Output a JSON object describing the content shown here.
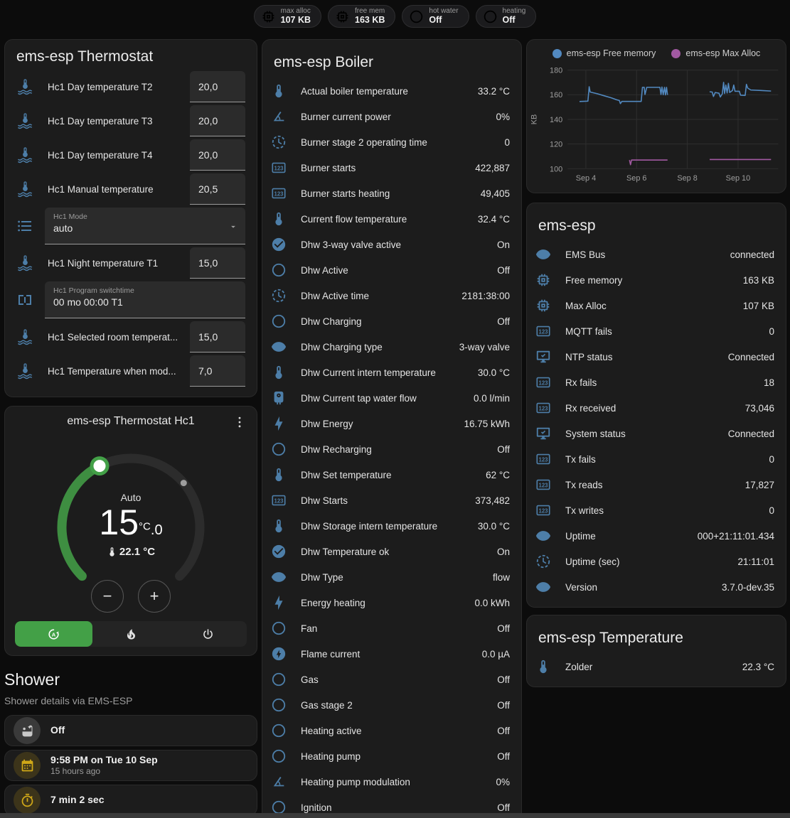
{
  "badges": [
    {
      "icon": "memory",
      "label": "max alloc",
      "value": "107 KB"
    },
    {
      "icon": "memory",
      "label": "free mem",
      "value": "163 KB"
    },
    {
      "icon": "circle-o",
      "label": "hot water",
      "value": "Off"
    },
    {
      "icon": "circle-o",
      "label": "heating",
      "value": "Off"
    }
  ],
  "thermostat_card": {
    "title": "ems-esp Thermostat",
    "rows": [
      {
        "type": "number",
        "icon": "thermo-water",
        "label": "Hc1 Day temperature T2",
        "value": "20,0"
      },
      {
        "type": "number",
        "icon": "thermo-water",
        "label": "Hc1 Day temperature T3",
        "value": "20,0"
      },
      {
        "type": "number",
        "icon": "thermo-water",
        "label": "Hc1 Day temperature T4",
        "value": "20,0"
      },
      {
        "type": "number",
        "icon": "thermo-water",
        "label": "Hc1 Manual temperature",
        "value": "20,5"
      },
      {
        "type": "select",
        "icon": "list",
        "label": "Hc1 Mode",
        "value": "auto"
      },
      {
        "type": "number",
        "icon": "thermo-water",
        "label": "Hc1 Night temperature T1",
        "value": "15,0"
      },
      {
        "type": "text",
        "icon": "valve",
        "label": "Hc1 Program switchtime",
        "value": "00 mo 00:00 T1"
      },
      {
        "type": "number",
        "icon": "thermo-water",
        "label": "Hc1 Selected room temperat...",
        "value": "15,0"
      },
      {
        "type": "number",
        "icon": "thermo-water",
        "label": "Hc1 Temperature when mod...",
        "value": "7,0"
      }
    ]
  },
  "hc1_card": {
    "title": "ems-esp Thermostat Hc1",
    "mode_text": "Auto",
    "temp_int": "15",
    "temp_frac": ".0",
    "temp_unit": "°C",
    "current_temp": "22.1 °C"
  },
  "shower": {
    "title": "Shower",
    "subtitle": "Shower details via EMS-ESP",
    "state": "Off",
    "last_time": "9:58 PM on Tue 10 Sep",
    "last_ago": "15 hours ago",
    "duration": "7 min 2 sec"
  },
  "boiler_card": {
    "title": "ems-esp Boiler",
    "entities": [
      {
        "icon": "thermometer",
        "name": "Actual boiler temperature",
        "value": "33.2 °C"
      },
      {
        "icon": "angle",
        "name": "Burner current power",
        "value": "0%"
      },
      {
        "icon": "clock",
        "name": "Burner stage 2 operating time",
        "value": "0"
      },
      {
        "icon": "counter",
        "name": "Burner starts",
        "value": "422,887"
      },
      {
        "icon": "counter",
        "name": "Burner starts heating",
        "value": "49,405"
      },
      {
        "icon": "thermometer",
        "name": "Current flow temperature",
        "value": "32.4 °C"
      },
      {
        "icon": "check-circle",
        "name": "Dhw 3-way valve active",
        "value": "On"
      },
      {
        "icon": "circle-o",
        "name": "Dhw Active",
        "value": "Off"
      },
      {
        "icon": "clock",
        "name": "Dhw Active time",
        "value": "2181:38:00"
      },
      {
        "icon": "circle-o",
        "name": "Dhw Charging",
        "value": "Off"
      },
      {
        "icon": "eye",
        "name": "Dhw Charging type",
        "value": "3-way valve"
      },
      {
        "icon": "thermometer",
        "name": "Dhw Current intern temperature",
        "value": "30.0 °C"
      },
      {
        "icon": "boiler",
        "name": "Dhw Current tap water flow",
        "value": "0.0 l/min"
      },
      {
        "icon": "bolt",
        "name": "Dhw Energy",
        "value": "16.75 kWh"
      },
      {
        "icon": "circle-o",
        "name": "Dhw Recharging",
        "value": "Off"
      },
      {
        "icon": "thermometer",
        "name": "Dhw Set temperature",
        "value": "62 °C"
      },
      {
        "icon": "counter",
        "name": "Dhw Starts",
        "value": "373,482"
      },
      {
        "icon": "thermometer",
        "name": "Dhw Storage intern temperature",
        "value": "30.0 °C"
      },
      {
        "icon": "check-circle",
        "name": "Dhw Temperature ok",
        "value": "On"
      },
      {
        "icon": "eye",
        "name": "Dhw Type",
        "value": "flow"
      },
      {
        "icon": "bolt",
        "name": "Energy heating",
        "value": "0.0 kWh"
      },
      {
        "icon": "circle-o",
        "name": "Fan",
        "value": "Off"
      },
      {
        "icon": "bolt-circle",
        "name": "Flame current",
        "value": "0.0 µA"
      },
      {
        "icon": "circle-o",
        "name": "Gas",
        "value": "Off"
      },
      {
        "icon": "circle-o",
        "name": "Gas stage 2",
        "value": "Off"
      },
      {
        "icon": "circle-o",
        "name": "Heating active",
        "value": "Off"
      },
      {
        "icon": "circle-o",
        "name": "Heating pump",
        "value": "Off"
      },
      {
        "icon": "angle",
        "name": "Heating pump modulation",
        "value": "0%"
      },
      {
        "icon": "circle-o",
        "name": "Ignition",
        "value": "Off"
      }
    ]
  },
  "emsesp_card": {
    "title": "ems-esp",
    "entities": [
      {
        "icon": "eye",
        "name": "EMS Bus",
        "value": "connected"
      },
      {
        "icon": "memory",
        "name": "Free memory",
        "value": "163 KB"
      },
      {
        "icon": "memory",
        "name": "Max Alloc",
        "value": "107 KB"
      },
      {
        "icon": "counter",
        "name": "MQTT fails",
        "value": "0"
      },
      {
        "icon": "monitor-check",
        "name": "NTP status",
        "value": "Connected"
      },
      {
        "icon": "counter",
        "name": "Rx fails",
        "value": "18"
      },
      {
        "icon": "counter",
        "name": "Rx received",
        "value": "73,046"
      },
      {
        "icon": "monitor-check",
        "name": "System status",
        "value": "Connected"
      },
      {
        "icon": "counter",
        "name": "Tx fails",
        "value": "0"
      },
      {
        "icon": "counter",
        "name": "Tx reads",
        "value": "17,827"
      },
      {
        "icon": "counter",
        "name": "Tx writes",
        "value": "0"
      },
      {
        "icon": "eye",
        "name": "Uptime",
        "value": "000+21:11:01.434"
      },
      {
        "icon": "clock",
        "name": "Uptime (sec)",
        "value": "21:11:01"
      },
      {
        "icon": "eye",
        "name": "Version",
        "value": "3.7.0-dev.35"
      }
    ]
  },
  "temperature_card": {
    "title": "ems-esp Temperature",
    "entities": [
      {
        "icon": "thermometer",
        "name": "Zolder",
        "value": "22.3 °C"
      }
    ]
  },
  "chart_data": {
    "type": "line",
    "title": "",
    "ylabel": "KB",
    "yticks": [
      100,
      120,
      140,
      160,
      180
    ],
    "ylim": [
      97,
      184
    ],
    "xlim": [
      3.45,
      11.35
    ],
    "xticks": [
      {
        "day": 4,
        "label": "Sep 4"
      },
      {
        "day": 6,
        "label": "Sep 6"
      },
      {
        "day": 8,
        "label": "Sep 8"
      },
      {
        "day": 10,
        "label": "Sep 10"
      }
    ],
    "grid": true,
    "legend_position": "top",
    "series": [
      {
        "name": "ems-esp Free memory",
        "color": "#5289c0",
        "unit": "KB",
        "segments": [
          [
            [
              3.75,
              154.5
            ],
            [
              4.08,
              154.8
            ],
            [
              4.13,
              166.5
            ],
            [
              4.17,
              162.2
            ],
            [
              4.45,
              160.8
            ],
            [
              4.75,
              159.0
            ],
            [
              5.0,
              157.5
            ],
            [
              5.2,
              156.0
            ],
            [
              5.32,
              155.3
            ],
            [
              5.36,
              152.8
            ],
            [
              5.42,
              154.6
            ],
            [
              6.18,
              154.6
            ],
            [
              6.23,
              166.0
            ],
            [
              6.3,
              166.0
            ],
            [
              6.33,
              160.2
            ],
            [
              6.4,
              166.0
            ],
            [
              6.92,
              166.0
            ],
            [
              6.96,
              160.2
            ],
            [
              7.0,
              166.3
            ],
            [
              7.05,
              160.0
            ],
            [
              7.1,
              166.0
            ],
            [
              7.14,
              159.8
            ],
            [
              7.18,
              166.0
            ],
            [
              7.22,
              159.8
            ]
          ],
          [
            [
              8.88,
              162.4
            ],
            [
              8.98,
              162.2
            ],
            [
              9.03,
              158.6
            ],
            [
              9.1,
              161.8
            ],
            [
              9.25,
              161.2
            ],
            [
              9.3,
              158.2
            ],
            [
              9.38,
              160.8
            ],
            [
              9.43,
              170.0
            ],
            [
              9.47,
              161.0
            ],
            [
              9.52,
              167.8
            ],
            [
              9.57,
              161.4
            ],
            [
              9.62,
              169.2
            ],
            [
              9.67,
              161.8
            ],
            [
              9.78,
              163.4
            ],
            [
              9.83,
              167.8
            ],
            [
              9.88,
              162.8
            ],
            [
              10.05,
              162.8
            ],
            [
              10.1,
              159.6
            ],
            [
              10.28,
              159.4
            ],
            [
              10.33,
              168.4
            ],
            [
              10.38,
              165.4
            ],
            [
              10.5,
              163.8
            ],
            [
              10.9,
              163.4
            ],
            [
              11.3,
              163.0
            ]
          ]
        ]
      },
      {
        "name": "ems-esp Max Alloc",
        "color": "#a159a1",
        "unit": "KB",
        "segments": [
          [
            [
              5.72,
              107.0
            ],
            [
              5.76,
              103.2
            ],
            [
              5.8,
              107.0
            ],
            [
              7.22,
              107.0
            ]
          ],
          [
            [
              8.88,
              107.4
            ],
            [
              11.3,
              107.4
            ]
          ]
        ]
      }
    ]
  }
}
